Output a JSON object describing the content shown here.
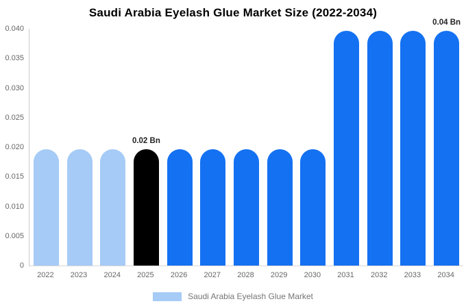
{
  "title": "Saudi Arabia Eyelash Glue Market Size (2022-2034)",
  "colors": {
    "light_blue": "#A5CBF6",
    "vivid_blue": "#1471F2",
    "black": "#000000",
    "axis_line": "#CCCCCC",
    "tick_text": "#666666",
    "annotation_text": "#222222",
    "legend_text": "#757575"
  },
  "chart_data": {
    "type": "bar",
    "title": "Saudi Arabia Eyelash Glue Market Size (2022-2034)",
    "xlabel": "",
    "ylabel": "",
    "ylim": [
      0,
      0.04
    ],
    "grid": false,
    "legend_position": "bottom",
    "categories": [
      "2022",
      "2023",
      "2024",
      "2025",
      "2026",
      "2027",
      "2028",
      "2029",
      "2030",
      "2031",
      "2032",
      "2033",
      "2034"
    ],
    "values": [
      0.0197,
      0.0197,
      0.0197,
      0.0197,
      0.0197,
      0.0197,
      0.0197,
      0.0197,
      0.0197,
      0.0397,
      0.0397,
      0.0397,
      0.0397
    ],
    "bar_colors": [
      "#A5CBF6",
      "#A5CBF6",
      "#A5CBF6",
      "#000000",
      "#1471F2",
      "#1471F2",
      "#1471F2",
      "#1471F2",
      "#1471F2",
      "#1471F2",
      "#1471F2",
      "#1471F2",
      "#1471F2"
    ],
    "yticks": [
      "0.040",
      "0.035",
      "0.030",
      "0.025",
      "0.020",
      "0.015",
      "0.010",
      "0.005",
      "0"
    ],
    "annotations": [
      {
        "category": "2025",
        "text": "0.02 Bn"
      },
      {
        "category": "2034",
        "text": "0.04 Bn"
      }
    ],
    "legend": {
      "label": "Saudi Arabia Eyelash Glue Market",
      "swatch_color": "#A5CBF6"
    }
  }
}
